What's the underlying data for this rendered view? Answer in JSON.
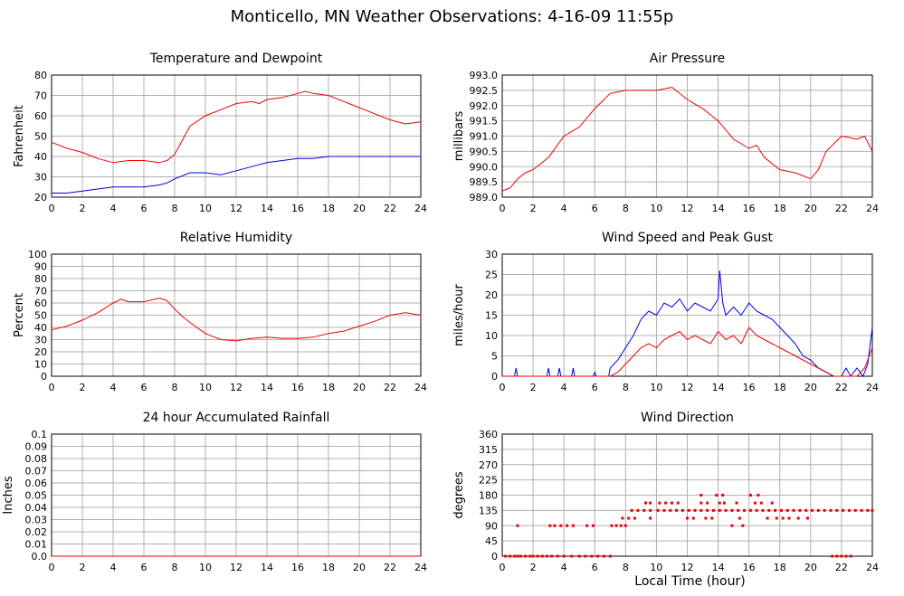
{
  "page": {
    "title": "Monticello, MN Weather Observations: 4-16-09 11:55p",
    "xlabel": "Local Time (hour)"
  },
  "colors": {
    "red": "#ee0000",
    "blue": "#0000dd",
    "grid": "#b0b0b0"
  },
  "chart_data": [
    {
      "id": "temperature",
      "type": "line",
      "title": "Temperature and Dewpoint",
      "xlabel": "",
      "ylabel": "Fahrenheit",
      "xlim": [
        0,
        24
      ],
      "ylim": [
        20,
        80
      ],
      "x_ticks": [
        0,
        2,
        4,
        6,
        8,
        10,
        12,
        14,
        16,
        18,
        20,
        22,
        24
      ],
      "y_ticks": [
        20,
        30,
        40,
        50,
        60,
        70,
        80
      ],
      "series": [
        {
          "color": "red",
          "x": [
            0,
            1,
            2,
            3,
            4,
            5,
            6,
            7,
            7.5,
            8,
            8.5,
            9,
            10,
            11,
            12,
            13,
            13.5,
            14,
            15,
            16,
            16.5,
            17,
            18,
            19,
            20,
            21,
            22,
            23,
            24
          ],
          "values": [
            47,
            44,
            42,
            39,
            37,
            38,
            38,
            37,
            38,
            41,
            48,
            55,
            60,
            63,
            66,
            67,
            66,
            68,
            69,
            71,
            72,
            71,
            70,
            67,
            64,
            61,
            58,
            56,
            57
          ]
        },
        {
          "color": "blue",
          "x": [
            0,
            1,
            2,
            3,
            4,
            5,
            6,
            7,
            7.5,
            8,
            9,
            10,
            11,
            12,
            13,
            14,
            15,
            16,
            17,
            18,
            19,
            20,
            21,
            22,
            23,
            24
          ],
          "values": [
            22,
            22,
            23,
            24,
            25,
            25,
            25,
            26,
            27,
            29,
            32,
            32,
            31,
            33,
            35,
            37,
            38,
            39,
            39,
            40,
            40,
            40,
            40,
            40,
            40,
            40
          ]
        }
      ]
    },
    {
      "id": "pressure",
      "type": "line",
      "title": "Air Pressure",
      "xlabel": "",
      "ylabel": "millibars",
      "xlim": [
        0,
        24
      ],
      "ylim": [
        989.0,
        993.0
      ],
      "x_ticks": [
        0,
        2,
        4,
        6,
        8,
        10,
        12,
        14,
        16,
        18,
        20,
        22,
        24
      ],
      "y_ticks": [
        "989.0",
        "989.5",
        "990.0",
        "990.5",
        "991.0",
        "991.5",
        "992.0",
        "992.5",
        "993.0"
      ],
      "series": [
        {
          "color": "red",
          "x": [
            0,
            0.5,
            1,
            1.5,
            2,
            3,
            4,
            5,
            6,
            7,
            8,
            9,
            10,
            11,
            12,
            13,
            14,
            15,
            16,
            16.5,
            17,
            18,
            19,
            20,
            20.5,
            21,
            22,
            23,
            23.5,
            24
          ],
          "values": [
            989.2,
            989.3,
            989.6,
            989.8,
            989.9,
            990.3,
            991.0,
            991.3,
            991.9,
            992.4,
            992.5,
            992.5,
            992.5,
            992.6,
            992.2,
            991.9,
            991.5,
            990.9,
            990.6,
            990.7,
            990.3,
            989.9,
            989.8,
            989.6,
            989.9,
            990.5,
            991.0,
            990.9,
            991.0,
            990.5
          ]
        }
      ]
    },
    {
      "id": "humidity",
      "type": "line",
      "title": "Relative Humidity",
      "xlabel": "",
      "ylabel": "Percent",
      "xlim": [
        0,
        24
      ],
      "ylim": [
        0,
        100
      ],
      "x_ticks": [
        0,
        2,
        4,
        6,
        8,
        10,
        12,
        14,
        16,
        18,
        20,
        22,
        24
      ],
      "y_ticks": [
        0,
        10,
        20,
        30,
        40,
        50,
        60,
        70,
        80,
        90,
        100
      ],
      "series": [
        {
          "color": "red",
          "x": [
            0,
            1,
            2,
            3,
            4,
            4.5,
            5,
            6,
            7,
            7.5,
            8,
            8.5,
            9,
            10,
            11,
            12,
            13,
            14,
            15,
            16,
            17,
            18,
            19,
            20,
            21,
            22,
            23,
            24
          ],
          "values": [
            38,
            41,
            46,
            52,
            60,
            63,
            61,
            61,
            64,
            62,
            55,
            49,
            44,
            35,
            30,
            29,
            31,
            32,
            31,
            31,
            32,
            35,
            37,
            41,
            45,
            50,
            52,
            50
          ]
        }
      ]
    },
    {
      "id": "wind",
      "type": "line",
      "title": "Wind Speed and Peak Gust",
      "xlabel": "",
      "ylabel": "miles/hour",
      "xlim": [
        0,
        24
      ],
      "ylim": [
        0,
        30
      ],
      "x_ticks": [
        0,
        2,
        4,
        6,
        8,
        10,
        12,
        14,
        16,
        18,
        20,
        22,
        24
      ],
      "y_ticks": [
        0,
        5,
        10,
        15,
        20,
        25,
        30
      ],
      "series": [
        {
          "color": "blue",
          "x": [
            0,
            0.8,
            0.9,
            1.0,
            2.9,
            3.0,
            3.1,
            3.6,
            3.7,
            3.8,
            4.5,
            4.6,
            4.7,
            5.9,
            6.0,
            6.1,
            6.9,
            7,
            7.5,
            8,
            8.5,
            9,
            9.5,
            10,
            10.5,
            11,
            11.5,
            12,
            12.5,
            13,
            13.5,
            14,
            14.1,
            14.3,
            14.5,
            15,
            15.5,
            16,
            16.5,
            17,
            17.5,
            18,
            18.5,
            19,
            19.5,
            20,
            20.5,
            21,
            21.5,
            22,
            22.3,
            22.6,
            23,
            23.4,
            23.7,
            24
          ],
          "values": [
            0,
            0,
            2,
            0,
            0,
            2,
            0,
            0,
            2,
            0,
            0,
            2,
            0,
            0,
            1,
            0,
            0,
            2,
            4,
            7,
            10,
            14,
            16,
            15,
            18,
            17,
            19,
            16,
            18,
            17,
            16,
            19,
            26,
            18,
            15,
            17,
            15,
            18,
            16,
            15,
            14,
            12,
            10,
            8,
            5,
            4,
            2,
            1,
            0,
            0,
            2,
            0,
            2,
            0,
            3,
            12
          ]
        },
        {
          "color": "red",
          "x": [
            0,
            7,
            7.5,
            8,
            8.5,
            9,
            9.5,
            10,
            10.5,
            11,
            11.5,
            12,
            12.5,
            13,
            13.5,
            14,
            14.5,
            15,
            15.5,
            16,
            16.5,
            17,
            17.5,
            18,
            18.5,
            19,
            19.5,
            20,
            20.5,
            21,
            21.5,
            22,
            23,
            23.5,
            24
          ],
          "values": [
            0,
            0,
            1,
            3,
            5,
            7,
            8,
            7,
            9,
            10,
            11,
            9,
            10,
            9,
            8,
            11,
            9,
            10,
            8,
            12,
            10,
            9,
            8,
            7,
            6,
            5,
            4,
            3,
            2,
            1,
            0,
            0,
            0,
            2,
            7
          ]
        }
      ]
    },
    {
      "id": "rainfall",
      "type": "line",
      "title": "24 hour Accumulated Rainfall",
      "xlabel": "",
      "ylabel": "Inches",
      "xlim": [
        0,
        24
      ],
      "ylim": [
        0,
        0.1
      ],
      "x_ticks": [
        0,
        2,
        4,
        6,
        8,
        10,
        12,
        14,
        16,
        18,
        20,
        22,
        24
      ],
      "y_ticks": [
        "0.0",
        "0.01",
        "0.02",
        "0.03",
        "0.04",
        "0.05",
        "0.06",
        "0.07",
        "0.08",
        "0.09",
        "0.1"
      ],
      "series": [
        {
          "color": "red",
          "x": [
            0,
            24
          ],
          "values": [
            0,
            0
          ]
        }
      ]
    },
    {
      "id": "direction",
      "type": "scatter",
      "title": "Wind Direction",
      "xlabel": "",
      "ylabel": "degrees",
      "xlim": [
        0,
        24
      ],
      "ylim": [
        0,
        360
      ],
      "x_ticks": [
        0,
        2,
        4,
        6,
        8,
        10,
        12,
        14,
        16,
        18,
        20,
        22,
        24
      ],
      "y_ticks": [
        0,
        45,
        90,
        135,
        180,
        225,
        270,
        315,
        360
      ],
      "series": [
        {
          "color": "red",
          "x": [
            0.2,
            0.5,
            0.8,
            1.0,
            1.2,
            1.5,
            1.8,
            2.0,
            2.3,
            2.6,
            2.9,
            3.2,
            3.6,
            4.0,
            4.5,
            5.0,
            5.4,
            5.8,
            6.2,
            6.6,
            7.0,
            21.4,
            21.7,
            22.0,
            22.3,
            22.6,
            1.0,
            3.1,
            3.4,
            3.8,
            4.2,
            4.6,
            5.5,
            5.9,
            7.1,
            7.4,
            7.7,
            8.0,
            14.9,
            15.6,
            7.8,
            8.2,
            8.6,
            9.6,
            12.0,
            12.4,
            13.2,
            13.6,
            15.4,
            17.2,
            17.8,
            18.2,
            18.6,
            19.2,
            19.8,
            8.4,
            8.8,
            9.2,
            9.6,
            10.1,
            10.5,
            10.9,
            11.3,
            11.7,
            12.1,
            12.5,
            12.9,
            13.3,
            13.7,
            14.1,
            14.5,
            14.9,
            15.3,
            15.7,
            16.1,
            16.5,
            16.9,
            17.3,
            17.7,
            18.1,
            18.5,
            18.9,
            19.3,
            19.7,
            20.1,
            20.5,
            20.9,
            21.3,
            21.7,
            22.1,
            22.5,
            22.9,
            23.3,
            23.7,
            24.0,
            9.3,
            9.6,
            10.2,
            10.6,
            11.0,
            11.4,
            12.9,
            13.3,
            14.1,
            14.4,
            15.2,
            16.4,
            16.8,
            17.5,
            12.9,
            13.9,
            14.3,
            16.1,
            16.6
          ],
          "values": [
            0,
            0,
            0,
            0,
            0,
            0,
            0,
            0,
            0,
            0,
            0,
            0,
            0,
            0,
            0,
            0,
            0,
            0,
            0,
            0,
            0,
            0,
            0,
            0,
            0,
            0,
            90,
            90,
            90,
            90,
            90,
            90,
            90,
            90,
            90,
            90,
            90,
            90,
            90,
            90,
            112,
            112,
            112,
            112,
            112,
            112,
            112,
            112,
            112,
            112,
            112,
            112,
            112,
            112,
            112,
            135,
            135,
            135,
            135,
            135,
            135,
            135,
            135,
            135,
            135,
            135,
            135,
            135,
            135,
            135,
            135,
            135,
            135,
            135,
            135,
            135,
            135,
            135,
            135,
            135,
            135,
            135,
            135,
            135,
            135,
            135,
            135,
            135,
            135,
            135,
            135,
            135,
            135,
            135,
            135,
            157,
            157,
            157,
            157,
            157,
            157,
            157,
            157,
            157,
            157,
            157,
            157,
            157,
            157,
            180,
            180,
            180,
            180,
            180
          ]
        }
      ]
    }
  ]
}
